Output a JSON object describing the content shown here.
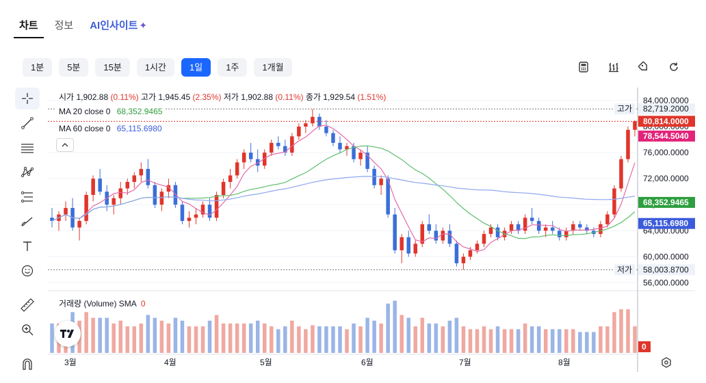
{
  "tabs": [
    {
      "label": "차트",
      "active": true
    },
    {
      "label": "정보",
      "active": false
    },
    {
      "label": "AI인사이트",
      "active": false
    }
  ],
  "periods": [
    {
      "label": "1분",
      "active": false
    },
    {
      "label": "5분",
      "active": false
    },
    {
      "label": "15분",
      "active": false
    },
    {
      "label": "1시간",
      "active": false
    },
    {
      "label": "1일",
      "active": true
    },
    {
      "label": "1주",
      "active": false
    },
    {
      "label": "1개월",
      "active": false
    }
  ],
  "toolbar_right_icons": [
    "calculator-icon",
    "indicators-icon",
    "draw-tag-icon",
    "refresh-icon"
  ],
  "left_tools": [
    "crosshair-icon",
    "trendline-icon",
    "horizontal-lines-icon",
    "pattern-icon",
    "fib-icon",
    "brush-icon",
    "text-icon",
    "emoji-icon",
    "ruler-icon",
    "zoom-icon",
    "magnet-icon"
  ],
  "ohlc": {
    "open_label": "시가",
    "open": "1,902.88",
    "open_pct": "(0.11%)",
    "high_label": "고가",
    "high": "1,945.45",
    "high_pct": "(2.35%)",
    "low_label": "저가",
    "low": "1,902.88",
    "low_pct": "(0.11%)",
    "close_label": "종가",
    "close": "1,929.54",
    "close_pct": "(1.51%)"
  },
  "ma20": {
    "label": "MA 20 close 0",
    "value": "68,352.9465",
    "color": "#2e9e3e"
  },
  "ma60": {
    "label": "MA 60 close 0",
    "value": "65,115.6980",
    "color": "#3b5bdb"
  },
  "volume_legend": {
    "label": "거래량 (Volume) SMA",
    "value": "0"
  },
  "price_axis": {
    "ticks": [
      "84,000.0000",
      "80,000.0000",
      "76,000.0000",
      "72,000.0000",
      "68,000.0000",
      "64,000.0000",
      "60,000.0000",
      "56,000.0000"
    ],
    "high_tag_label": "고가",
    "high_tag_value": "82,719.2000",
    "low_tag_label": "저가",
    "low_tag_value": "58,003.8700",
    "last_price": "80,814.0000",
    "pink_price": "78,544.5040",
    "ma20_price": "68,352.9465",
    "ma60_price": "65,115.6980",
    "volume_value": "0"
  },
  "time_axis": [
    "3월",
    "4월",
    "5월",
    "6월",
    "7월",
    "8월"
  ],
  "colors": {
    "up": "#e0352b",
    "down": "#3b6fd8",
    "vol_up": "#f0a8a0",
    "vol_down": "#9ab5e6",
    "ma5": "#e26aa8",
    "ma20": "#5cbf6a",
    "ma60": "#8fa6ef",
    "accent": "#1b66ff"
  },
  "chart_data": {
    "type": "candlestick",
    "y_range": [
      55000,
      86000
    ],
    "candles": [
      [
        66000,
        67500,
        64500,
        65500
      ],
      [
        65500,
        67000,
        64000,
        66500
      ],
      [
        66500,
        68500,
        65500,
        67500
      ],
      [
        67500,
        69000,
        64000,
        64500
      ],
      [
        64500,
        66000,
        62500,
        65500
      ],
      [
        65500,
        70000,
        65000,
        69500
      ],
      [
        69500,
        72500,
        68500,
        72000
      ],
      [
        72000,
        73500,
        69500,
        70000
      ],
      [
        70000,
        71000,
        67000,
        68000
      ],
      [
        68000,
        69500,
        66500,
        69000
      ],
      [
        69000,
        71500,
        68000,
        70500
      ],
      [
        70500,
        72000,
        69500,
        71500
      ],
      [
        71500,
        73000,
        70500,
        72500
      ],
      [
        72500,
        74500,
        71500,
        73500
      ],
      [
        73500,
        75000,
        70500,
        71000
      ],
      [
        71000,
        71500,
        67500,
        68000
      ],
      [
        68000,
        70500,
        67000,
        70000
      ],
      [
        70000,
        72000,
        69000,
        71000
      ],
      [
        71000,
        71500,
        67500,
        68000
      ],
      [
        68000,
        68500,
        65000,
        65500
      ],
      [
        65500,
        67000,
        64500,
        66000
      ],
      [
        66000,
        67500,
        65000,
        66500
      ],
      [
        66500,
        68500,
        66000,
        68000
      ],
      [
        68000,
        69000,
        65500,
        66000
      ],
      [
        66000,
        70000,
        65500,
        69500
      ],
      [
        69500,
        72000,
        69000,
        71500
      ],
      [
        71500,
        73500,
        70500,
        72500
      ],
      [
        72500,
        75000,
        72000,
        74500
      ],
      [
        74500,
        76500,
        73500,
        76000
      ],
      [
        76000,
        77500,
        74500,
        75000
      ],
      [
        75000,
        76500,
        73000,
        74000
      ],
      [
        74000,
        76500,
        73500,
        76000
      ],
      [
        76000,
        78000,
        75500,
        77500
      ],
      [
        77500,
        78500,
        76500,
        77000
      ],
      [
        77000,
        78000,
        75500,
        76000
      ],
      [
        76000,
        79000,
        75500,
        78500
      ],
      [
        78500,
        80500,
        78000,
        80000
      ],
      [
        80000,
        81000,
        79000,
        80500
      ],
      [
        80500,
        82700,
        80000,
        81500
      ],
      [
        81500,
        82000,
        79500,
        80000
      ],
      [
        80000,
        81000,
        78500,
        79000
      ],
      [
        79000,
        79500,
        77000,
        77500
      ],
      [
        77500,
        78500,
        76000,
        76500
      ],
      [
        76500,
        77500,
        75500,
        77000
      ],
      [
        77000,
        77500,
        74500,
        75000
      ],
      [
        75000,
        76500,
        74000,
        76000
      ],
      [
        76000,
        77000,
        73000,
        73500
      ],
      [
        73500,
        74000,
        70500,
        71000
      ],
      [
        71000,
        72500,
        69500,
        72000
      ],
      [
        72000,
        72500,
        66000,
        66500
      ],
      [
        66500,
        67500,
        60500,
        61000
      ],
      [
        61000,
        63500,
        59000,
        63000
      ],
      [
        63000,
        64000,
        60000,
        60500
      ],
      [
        60500,
        62500,
        60000,
        62000
      ],
      [
        62000,
        65500,
        61500,
        65000
      ],
      [
        65000,
        66500,
        63500,
        64000
      ],
      [
        64000,
        65000,
        62000,
        62500
      ],
      [
        62500,
        64500,
        62000,
        64000
      ],
      [
        64000,
        65000,
        61500,
        62000
      ],
      [
        62000,
        62500,
        58500,
        59000
      ],
      [
        59000,
        60500,
        58000,
        60000
      ],
      [
        60000,
        61500,
        59500,
        61000
      ],
      [
        61000,
        62500,
        60500,
        62000
      ],
      [
        62000,
        64000,
        61500,
        63500
      ],
      [
        63500,
        65000,
        63000,
        64500
      ],
      [
        64500,
        65000,
        62500,
        63000
      ],
      [
        63000,
        64500,
        62500,
        64000
      ],
      [
        64000,
        65500,
        63500,
        65000
      ],
      [
        65000,
        65500,
        63500,
        64000
      ],
      [
        64000,
        66500,
        63500,
        66000
      ],
      [
        66000,
        67500,
        65000,
        65500
      ],
      [
        65500,
        66000,
        63500,
        64000
      ],
      [
        64000,
        65000,
        63000,
        64500
      ],
      [
        64500,
        65500,
        63500,
        64000
      ],
      [
        64000,
        64500,
        62500,
        63000
      ],
      [
        63000,
        64500,
        62500,
        64000
      ],
      [
        64000,
        65500,
        63500,
        65000
      ],
      [
        65000,
        65500,
        64000,
        64500
      ],
      [
        64500,
        65000,
        63500,
        64000
      ],
      [
        64000,
        64500,
        63000,
        63500
      ],
      [
        63500,
        65500,
        63000,
        65000
      ],
      [
        65000,
        67000,
        64500,
        66500
      ],
      [
        66500,
        71000,
        66000,
        70500
      ],
      [
        70500,
        75500,
        70000,
        75000
      ],
      [
        75000,
        80000,
        74500,
        79500
      ],
      [
        79500,
        81000,
        78500,
        80814
      ]
    ]
  }
}
